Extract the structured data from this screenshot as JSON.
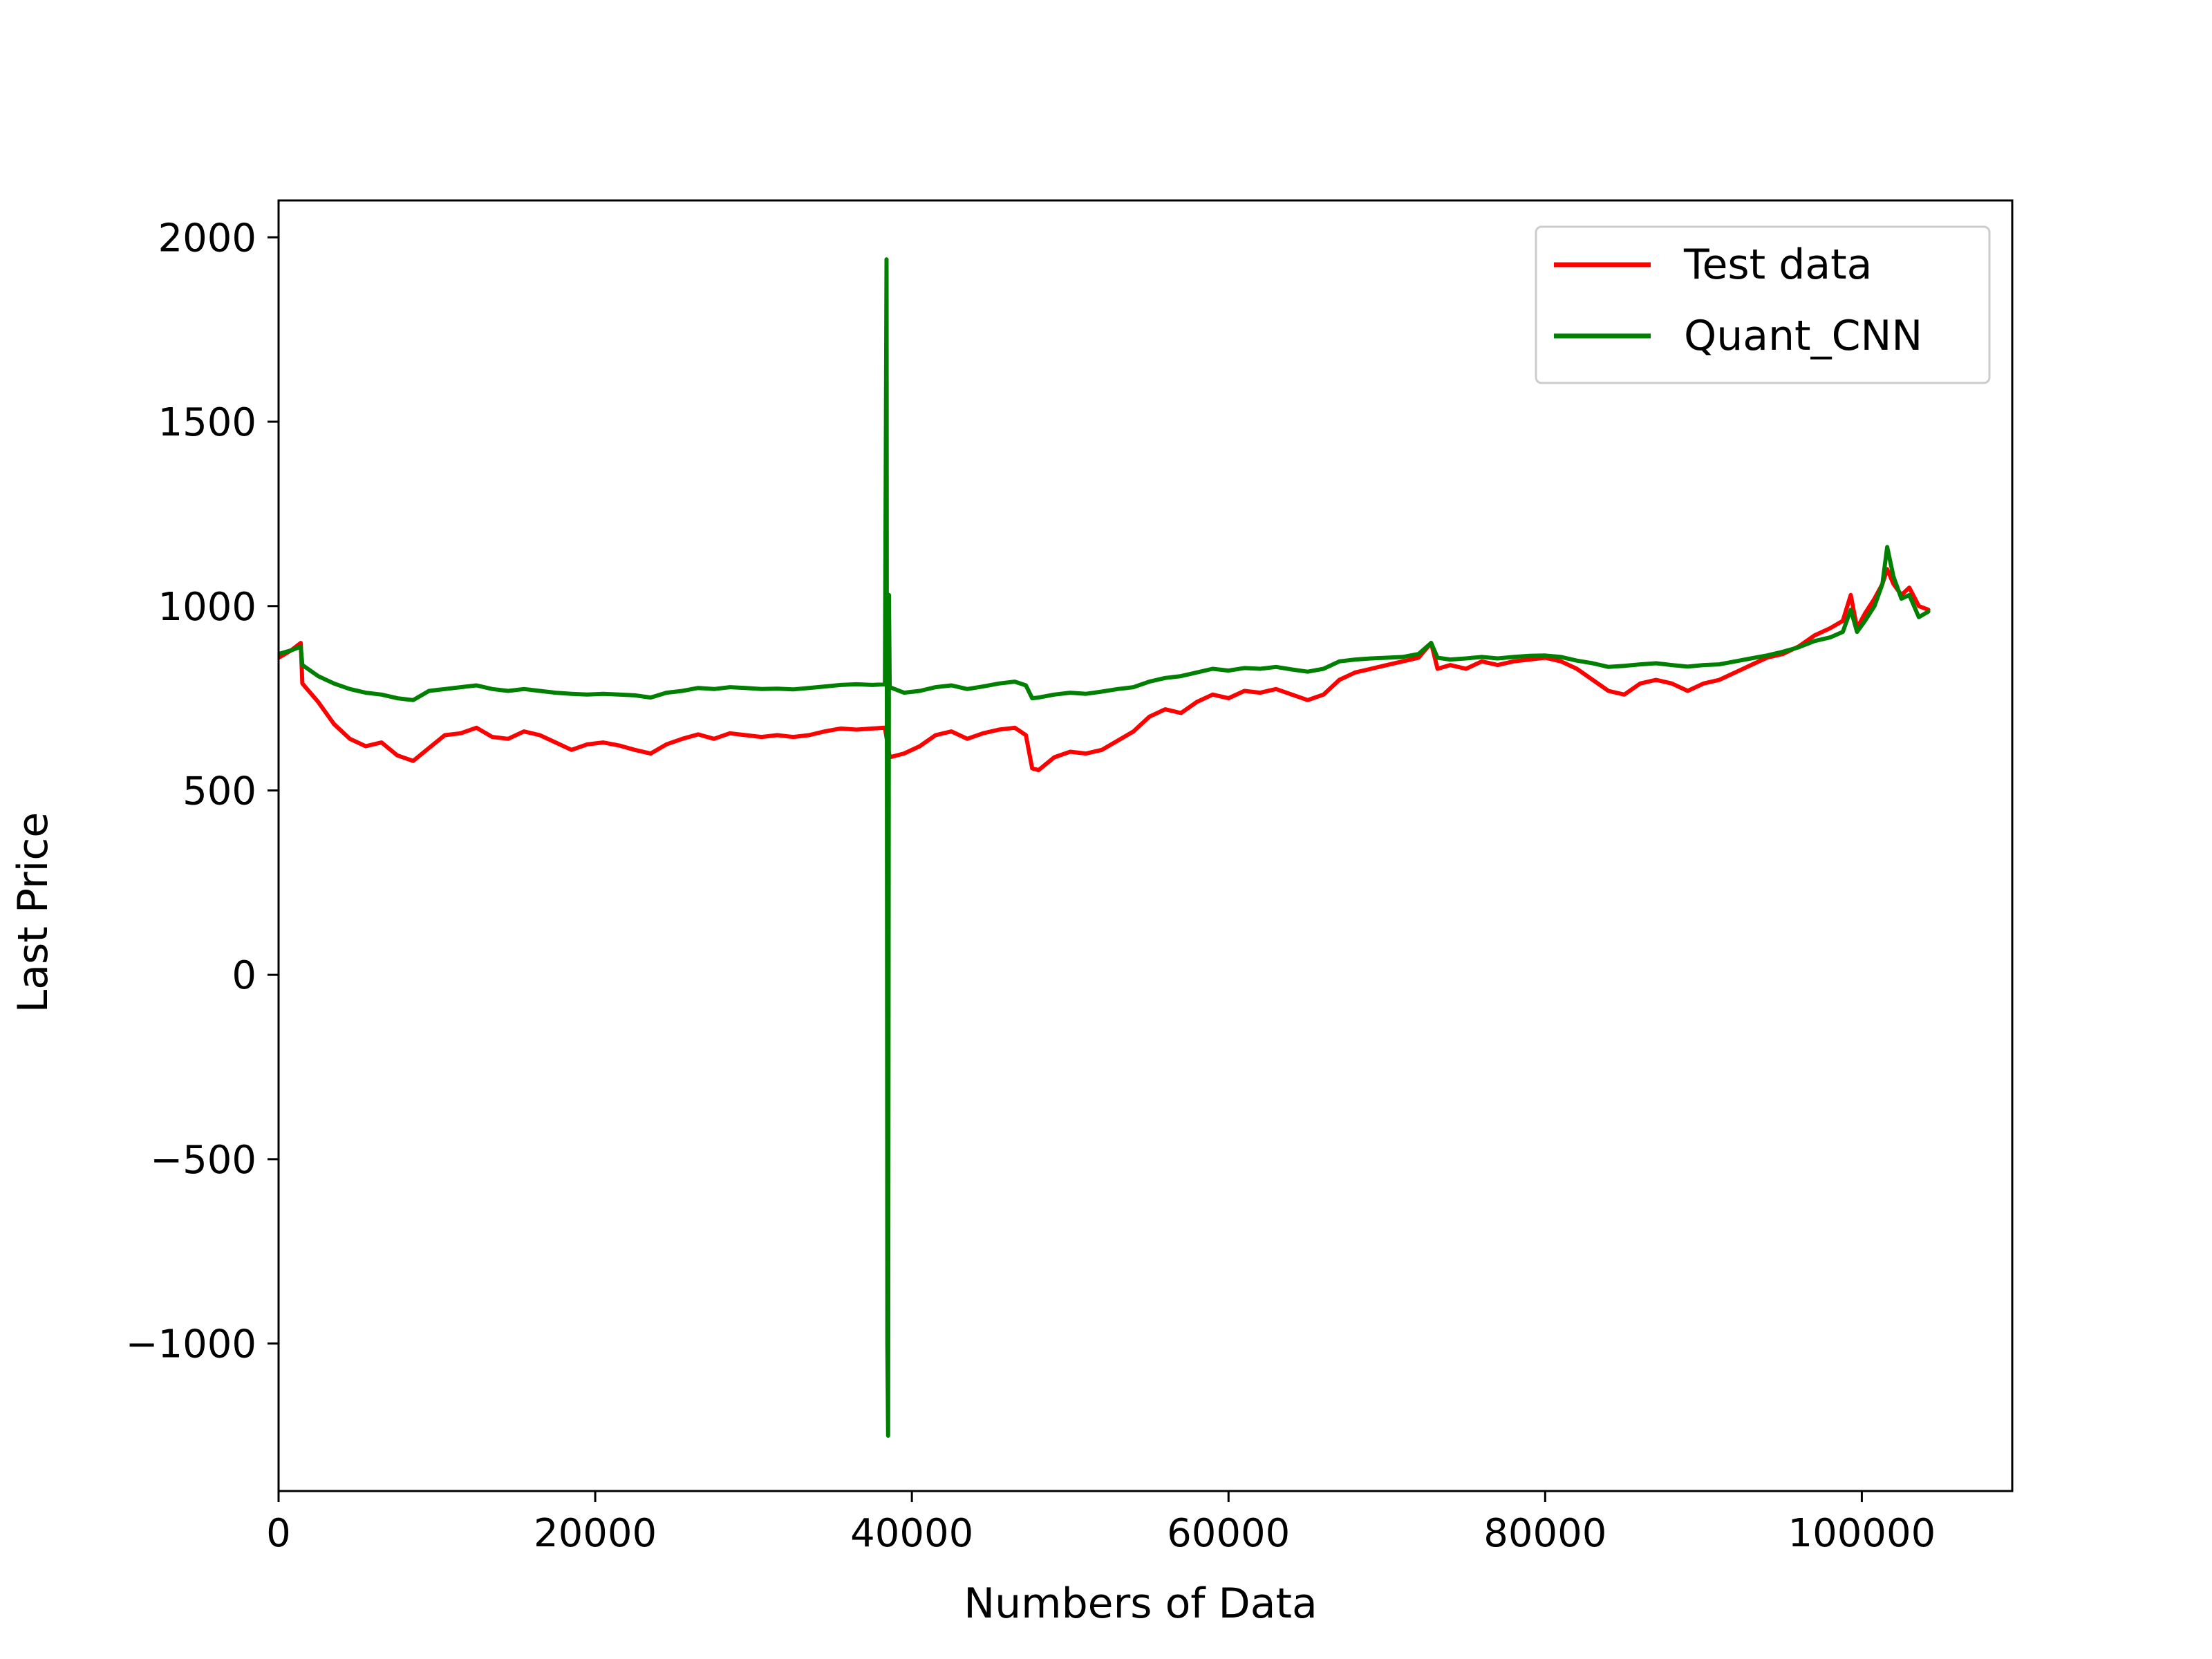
{
  "chart_data": {
    "type": "line",
    "title": "",
    "xlabel": "Numbers of Data",
    "ylabel": "Last Price",
    "xlim": [
      0,
      109500
    ],
    "ylim": [
      -1400,
      2100
    ],
    "xticks": [
      0,
      20000,
      40000,
      60000,
      80000,
      100000
    ],
    "xtick_labels": [
      "0",
      "20000",
      "40000",
      "60000",
      "80000",
      "100000"
    ],
    "yticks": [
      -1000,
      -500,
      0,
      500,
      1000,
      1500,
      2000
    ],
    "ytick_labels": [
      "−1000",
      "−500",
      "0",
      "500",
      "1000",
      "1500",
      "2000"
    ],
    "grid": false,
    "legend_position": "top-right",
    "series": [
      {
        "name": "Test data",
        "color": "#ff0000",
        "points": [
          [
            0,
            860
          ],
          [
            800,
            880
          ],
          [
            1400,
            900
          ],
          [
            1500,
            790
          ],
          [
            2500,
            740
          ],
          [
            3500,
            680
          ],
          [
            4500,
            640
          ],
          [
            5500,
            620
          ],
          [
            6500,
            630
          ],
          [
            7500,
            595
          ],
          [
            8500,
            580
          ],
          [
            9500,
            615
          ],
          [
            10500,
            650
          ],
          [
            11500,
            655
          ],
          [
            12500,
            670
          ],
          [
            13500,
            645
          ],
          [
            14500,
            640
          ],
          [
            15500,
            660
          ],
          [
            16500,
            650
          ],
          [
            17500,
            630
          ],
          [
            18500,
            610
          ],
          [
            19500,
            625
          ],
          [
            20500,
            630
          ],
          [
            21500,
            622
          ],
          [
            22500,
            610
          ],
          [
            23500,
            600
          ],
          [
            24500,
            625
          ],
          [
            25500,
            640
          ],
          [
            26500,
            652
          ],
          [
            27500,
            640
          ],
          [
            28500,
            655
          ],
          [
            29500,
            650
          ],
          [
            30500,
            645
          ],
          [
            31500,
            650
          ],
          [
            32500,
            645
          ],
          [
            33500,
            650
          ],
          [
            34500,
            660
          ],
          [
            35500,
            668
          ],
          [
            36500,
            665
          ],
          [
            37500,
            668
          ],
          [
            38300,
            670
          ],
          [
            38600,
            590
          ],
          [
            39500,
            600
          ],
          [
            40500,
            620
          ],
          [
            41500,
            650
          ],
          [
            42500,
            660
          ],
          [
            43500,
            640
          ],
          [
            44500,
            655
          ],
          [
            45500,
            665
          ],
          [
            46500,
            670
          ],
          [
            47200,
            650
          ],
          [
            47600,
            560
          ],
          [
            48000,
            555
          ],
          [
            49000,
            590
          ],
          [
            50000,
            605
          ],
          [
            51000,
            600
          ],
          [
            52000,
            610
          ],
          [
            53000,
            635
          ],
          [
            54000,
            660
          ],
          [
            55000,
            700
          ],
          [
            56000,
            720
          ],
          [
            57000,
            710
          ],
          [
            58000,
            740
          ],
          [
            59000,
            760
          ],
          [
            60000,
            750
          ],
          [
            61000,
            770
          ],
          [
            62000,
            765
          ],
          [
            63000,
            775
          ],
          [
            64000,
            760
          ],
          [
            65000,
            745
          ],
          [
            66000,
            760
          ],
          [
            67000,
            800
          ],
          [
            68000,
            820
          ],
          [
            69000,
            830
          ],
          [
            70000,
            840
          ],
          [
            71000,
            850
          ],
          [
            72000,
            860
          ],
          [
            72800,
            900
          ],
          [
            73200,
            830
          ],
          [
            74000,
            840
          ],
          [
            75000,
            830
          ],
          [
            76000,
            850
          ],
          [
            77000,
            840
          ],
          [
            78000,
            850
          ],
          [
            79000,
            855
          ],
          [
            80000,
            860
          ],
          [
            81000,
            850
          ],
          [
            82000,
            830
          ],
          [
            83000,
            800
          ],
          [
            84000,
            770
          ],
          [
            85000,
            760
          ],
          [
            86000,
            790
          ],
          [
            87000,
            800
          ],
          [
            88000,
            790
          ],
          [
            89000,
            770
          ],
          [
            90000,
            790
          ],
          [
            91000,
            800
          ],
          [
            92000,
            820
          ],
          [
            93000,
            840
          ],
          [
            94000,
            860
          ],
          [
            95000,
            870
          ],
          [
            96000,
            890
          ],
          [
            97000,
            920
          ],
          [
            98000,
            940
          ],
          [
            98800,
            960
          ],
          [
            99300,
            1030
          ],
          [
            99700,
            940
          ],
          [
            100200,
            980
          ],
          [
            100800,
            1020
          ],
          [
            101300,
            1060
          ],
          [
            101600,
            1100
          ],
          [
            102000,
            1060
          ],
          [
            102500,
            1030
          ],
          [
            103000,
            1050
          ],
          [
            103600,
            1000
          ],
          [
            104200,
            990
          ]
        ]
      },
      {
        "name": "Quant_CNN",
        "color": "#008000",
        "points": [
          [
            0,
            870
          ],
          [
            800,
            880
          ],
          [
            1400,
            890
          ],
          [
            1500,
            840
          ],
          [
            2500,
            810
          ],
          [
            3500,
            790
          ],
          [
            4500,
            775
          ],
          [
            5500,
            765
          ],
          [
            6500,
            760
          ],
          [
            7500,
            750
          ],
          [
            8500,
            745
          ],
          [
            9500,
            770
          ],
          [
            10500,
            775
          ],
          [
            11500,
            780
          ],
          [
            12500,
            785
          ],
          [
            13500,
            775
          ],
          [
            14500,
            770
          ],
          [
            15500,
            775
          ],
          [
            16500,
            770
          ],
          [
            17500,
            765
          ],
          [
            18500,
            762
          ],
          [
            19500,
            760
          ],
          [
            20500,
            762
          ],
          [
            21500,
            760
          ],
          [
            22500,
            758
          ],
          [
            23500,
            752
          ],
          [
            24500,
            765
          ],
          [
            25500,
            770
          ],
          [
            26500,
            778
          ],
          [
            27500,
            775
          ],
          [
            28500,
            780
          ],
          [
            29500,
            778
          ],
          [
            30500,
            775
          ],
          [
            31500,
            776
          ],
          [
            32500,
            774
          ],
          [
            33500,
            778
          ],
          [
            34500,
            782
          ],
          [
            35500,
            786
          ],
          [
            36500,
            788
          ],
          [
            37500,
            786
          ],
          [
            38300,
            788
          ],
          [
            38400,
            1940
          ],
          [
            38450,
            -1000
          ],
          [
            38500,
            -1250
          ],
          [
            38550,
            1030
          ],
          [
            38600,
            780
          ],
          [
            39500,
            765
          ],
          [
            40500,
            770
          ],
          [
            41500,
            780
          ],
          [
            42500,
            785
          ],
          [
            43500,
            775
          ],
          [
            44500,
            782
          ],
          [
            45500,
            790
          ],
          [
            46500,
            795
          ],
          [
            47200,
            785
          ],
          [
            47600,
            750
          ],
          [
            48000,
            752
          ],
          [
            49000,
            760
          ],
          [
            50000,
            765
          ],
          [
            51000,
            762
          ],
          [
            52000,
            768
          ],
          [
            53000,
            775
          ],
          [
            54000,
            780
          ],
          [
            55000,
            795
          ],
          [
            56000,
            805
          ],
          [
            57000,
            810
          ],
          [
            58000,
            820
          ],
          [
            59000,
            830
          ],
          [
            60000,
            825
          ],
          [
            61000,
            832
          ],
          [
            62000,
            830
          ],
          [
            63000,
            835
          ],
          [
            64000,
            828
          ],
          [
            65000,
            822
          ],
          [
            66000,
            830
          ],
          [
            67000,
            850
          ],
          [
            68000,
            855
          ],
          [
            69000,
            858
          ],
          [
            70000,
            860
          ],
          [
            71000,
            862
          ],
          [
            72000,
            870
          ],
          [
            72800,
            900
          ],
          [
            73200,
            860
          ],
          [
            74000,
            855
          ],
          [
            75000,
            858
          ],
          [
            76000,
            862
          ],
          [
            77000,
            858
          ],
          [
            78000,
            862
          ],
          [
            79000,
            865
          ],
          [
            80000,
            866
          ],
          [
            81000,
            862
          ],
          [
            82000,
            852
          ],
          [
            83000,
            845
          ],
          [
            84000,
            835
          ],
          [
            85000,
            838
          ],
          [
            86000,
            842
          ],
          [
            87000,
            845
          ],
          [
            88000,
            840
          ],
          [
            89000,
            836
          ],
          [
            90000,
            840
          ],
          [
            91000,
            842
          ],
          [
            92000,
            850
          ],
          [
            93000,
            858
          ],
          [
            94000,
            866
          ],
          [
            95000,
            876
          ],
          [
            96000,
            888
          ],
          [
            97000,
            905
          ],
          [
            98000,
            915
          ],
          [
            98800,
            930
          ],
          [
            99300,
            990
          ],
          [
            99700,
            930
          ],
          [
            100200,
            960
          ],
          [
            100800,
            1000
          ],
          [
            101300,
            1060
          ],
          [
            101600,
            1160
          ],
          [
            102000,
            1080
          ],
          [
            102500,
            1020
          ],
          [
            103000,
            1030
          ],
          [
            103600,
            970
          ],
          [
            104200,
            985
          ]
        ]
      }
    ]
  }
}
